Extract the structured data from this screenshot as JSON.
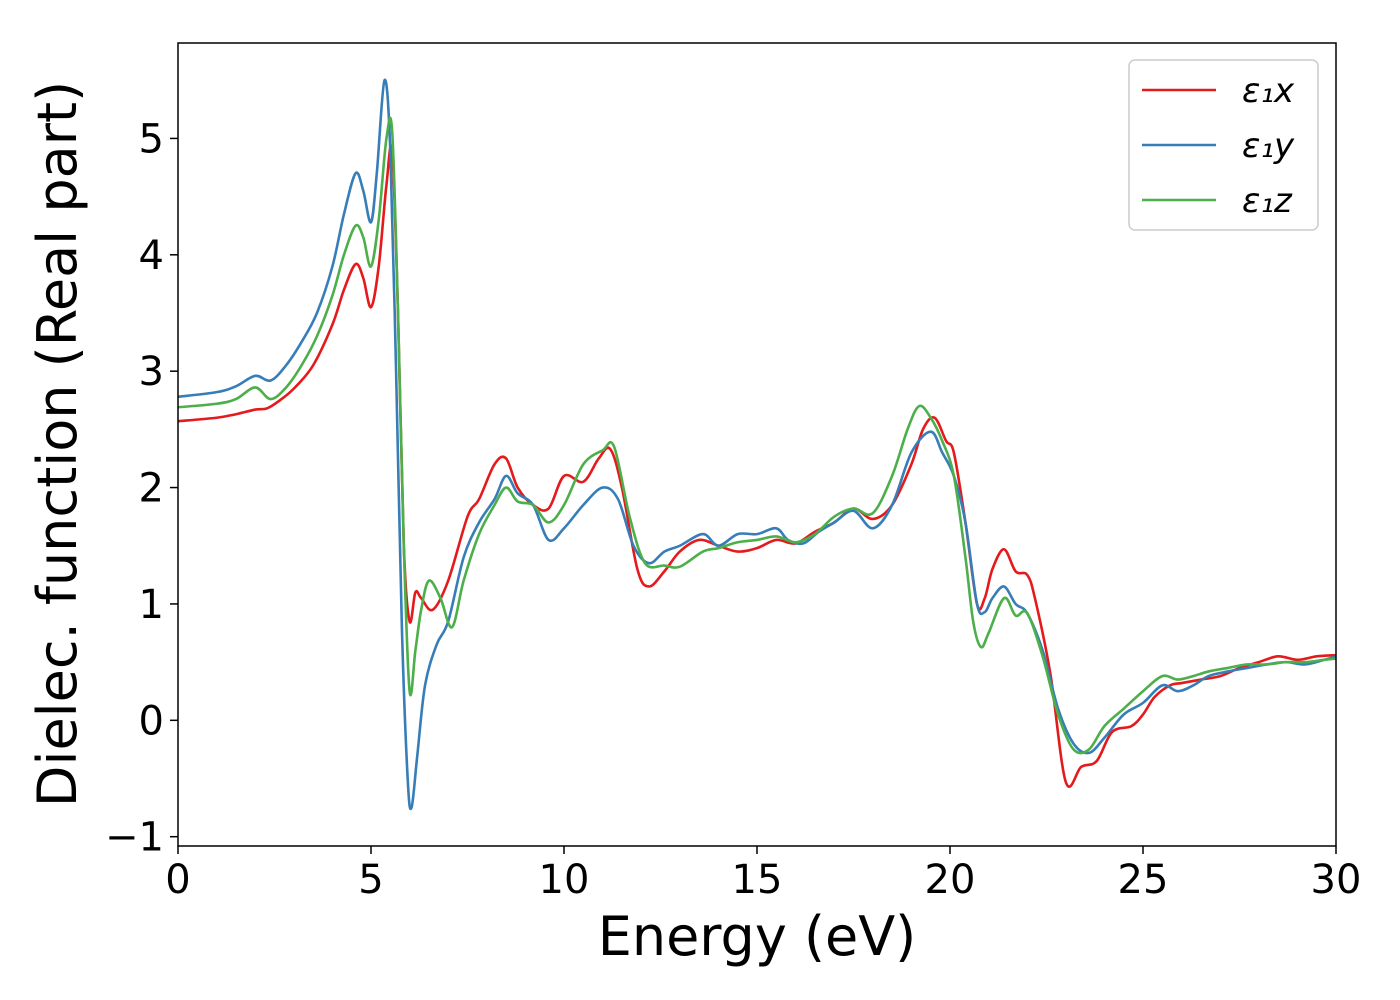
{
  "chart_data": {
    "type": "line",
    "title": "",
    "xlabel": "Energy (eV)",
    "ylabel": "Dielec. function (Real part)",
    "xlim": [
      0,
      30
    ],
    "ylim": [
      -1.08,
      5.82
    ],
    "xticks": [
      0,
      5,
      10,
      15,
      20,
      25,
      30
    ],
    "xtick_labels": [
      "0",
      "5",
      "10",
      "15",
      "20",
      "25",
      "30"
    ],
    "yticks": [
      -1,
      0,
      1,
      2,
      3,
      4,
      5
    ],
    "ytick_labels": [
      "−1",
      "0",
      "1",
      "2",
      "3",
      "4",
      "5"
    ],
    "grid": false,
    "legend": "top-right",
    "series": [
      {
        "name": "ε₁x",
        "color": "#e41a1c",
        "x": [
          0,
          1,
          1.5,
          2,
          2.3,
          2.6,
          3,
          3.5,
          4,
          4.3,
          4.6,
          4.8,
          5.0,
          5.2,
          5.4,
          5.55,
          5.7,
          5.85,
          6.0,
          6.15,
          6.3,
          6.6,
          7.0,
          7.5,
          7.8,
          8.2,
          8.5,
          8.8,
          9.2,
          9.6,
          10.0,
          10.5,
          10.9,
          11.2,
          11.5,
          11.9,
          12.2,
          12.6,
          13.0,
          13.5,
          14.0,
          14.5,
          15.0,
          15.5,
          16.0,
          16.5,
          17.0,
          17.5,
          18.0,
          18.5,
          19.0,
          19.3,
          19.6,
          19.9,
          20.1,
          20.4,
          20.7,
          20.9,
          21.1,
          21.4,
          21.7,
          22.0,
          22.2,
          22.6,
          23.0,
          23.4,
          23.8,
          24.2,
          24.7,
          25.0,
          25.3,
          25.7,
          26.0,
          26.5,
          27.0,
          27.5,
          28.0,
          28.5,
          29.0,
          29.5,
          30.0
        ],
        "y": [
          2.57,
          2.6,
          2.63,
          2.67,
          2.68,
          2.74,
          2.85,
          3.05,
          3.4,
          3.7,
          3.92,
          3.8,
          3.55,
          3.9,
          4.6,
          4.88,
          3.5,
          1.5,
          0.85,
          1.1,
          1.05,
          0.95,
          1.2,
          1.75,
          1.9,
          2.2,
          2.25,
          2.0,
          1.85,
          1.82,
          2.1,
          2.05,
          2.25,
          2.33,
          2.0,
          1.3,
          1.15,
          1.28,
          1.45,
          1.55,
          1.5,
          1.45,
          1.48,
          1.55,
          1.52,
          1.62,
          1.7,
          1.82,
          1.73,
          1.85,
          2.2,
          2.5,
          2.6,
          2.4,
          2.3,
          1.7,
          1.0,
          1.05,
          1.3,
          1.47,
          1.28,
          1.25,
          1.05,
          0.4,
          -0.53,
          -0.4,
          -0.35,
          -0.1,
          -0.05,
          0.05,
          0.2,
          0.3,
          0.32,
          0.35,
          0.38,
          0.45,
          0.5,
          0.55,
          0.52,
          0.55,
          0.56
        ]
      },
      {
        "name": "ε₁y",
        "color": "#377eb8",
        "x": [
          0,
          1,
          1.5,
          2,
          2.4,
          2.8,
          3.2,
          3.6,
          4.0,
          4.3,
          4.6,
          4.8,
          5.0,
          5.15,
          5.35,
          5.5,
          5.65,
          5.8,
          5.95,
          6.05,
          6.2,
          6.4,
          6.7,
          7.0,
          7.4,
          7.8,
          8.2,
          8.5,
          8.8,
          9.2,
          9.6,
          10.0,
          10.5,
          11.0,
          11.4,
          11.8,
          12.2,
          12.6,
          13.0,
          13.6,
          14.0,
          14.5,
          15.0,
          15.5,
          15.8,
          16.2,
          16.6,
          17.0,
          17.5,
          18.0,
          18.5,
          19.0,
          19.5,
          19.8,
          20.1,
          20.4,
          20.7,
          20.9,
          21.1,
          21.4,
          21.7,
          22.0,
          22.4,
          22.8,
          23.2,
          23.6,
          24.0,
          24.5,
          25.0,
          25.5,
          25.9,
          26.3,
          26.7,
          27.2,
          27.7,
          28.2,
          28.7,
          29.2,
          29.7,
          30.0
        ],
        "y": [
          2.78,
          2.82,
          2.87,
          2.96,
          2.92,
          3.05,
          3.25,
          3.5,
          3.9,
          4.35,
          4.7,
          4.55,
          4.28,
          4.7,
          5.5,
          4.9,
          3.0,
          0.8,
          -0.5,
          -0.75,
          -0.3,
          0.3,
          0.65,
          0.85,
          1.4,
          1.7,
          1.9,
          2.1,
          1.95,
          1.85,
          1.55,
          1.65,
          1.85,
          2.0,
          1.9,
          1.5,
          1.35,
          1.45,
          1.5,
          1.6,
          1.5,
          1.6,
          1.6,
          1.65,
          1.55,
          1.52,
          1.62,
          1.7,
          1.8,
          1.65,
          1.85,
          2.3,
          2.48,
          2.3,
          2.1,
          1.7,
          1.0,
          0.93,
          1.05,
          1.15,
          1.0,
          0.92,
          0.6,
          0.1,
          -0.2,
          -0.28,
          -0.15,
          0.05,
          0.15,
          0.3,
          0.25,
          0.3,
          0.38,
          0.42,
          0.45,
          0.48,
          0.5,
          0.48,
          0.52,
          0.55
        ]
      },
      {
        "name": "ε₁z",
        "color": "#4daf4a",
        "x": [
          0,
          1,
          1.5,
          2,
          2.4,
          2.8,
          3.2,
          3.6,
          4.0,
          4.3,
          4.6,
          4.8,
          5.0,
          5.2,
          5.4,
          5.55,
          5.7,
          5.85,
          6.0,
          6.15,
          6.3,
          6.5,
          6.8,
          7.1,
          7.4,
          7.8,
          8.2,
          8.5,
          8.8,
          9.2,
          9.6,
          10.0,
          10.5,
          11.0,
          11.3,
          11.7,
          12.1,
          12.6,
          13.0,
          13.6,
          14.0,
          14.5,
          15.0,
          15.5,
          16.0,
          16.5,
          17.0,
          17.5,
          18.0,
          18.5,
          18.9,
          19.2,
          19.5,
          19.8,
          20.1,
          20.4,
          20.6,
          20.8,
          21.0,
          21.4,
          21.7,
          22.0,
          22.4,
          22.8,
          23.2,
          23.6,
          24.0,
          24.5,
          25.0,
          25.5,
          25.9,
          26.3,
          26.7,
          27.2,
          27.7,
          28.2,
          28.7,
          29.2,
          29.7,
          30.0
        ],
        "y": [
          2.69,
          2.72,
          2.76,
          2.86,
          2.76,
          2.86,
          3.05,
          3.3,
          3.65,
          4.0,
          4.25,
          4.15,
          3.9,
          4.3,
          5.0,
          5.05,
          3.5,
          1.5,
          0.25,
          0.6,
          0.95,
          1.2,
          1.05,
          0.8,
          1.2,
          1.6,
          1.85,
          2.0,
          1.88,
          1.85,
          1.7,
          1.85,
          2.2,
          2.32,
          2.35,
          1.75,
          1.35,
          1.33,
          1.32,
          1.45,
          1.48,
          1.53,
          1.55,
          1.58,
          1.53,
          1.6,
          1.75,
          1.82,
          1.78,
          2.1,
          2.5,
          2.7,
          2.6,
          2.4,
          2.1,
          1.4,
          0.85,
          0.63,
          0.75,
          1.05,
          0.9,
          0.92,
          0.55,
          0.05,
          -0.25,
          -0.25,
          -0.05,
          0.1,
          0.25,
          0.38,
          0.35,
          0.38,
          0.42,
          0.45,
          0.48,
          0.48,
          0.5,
          0.5,
          0.52,
          0.53
        ]
      }
    ]
  }
}
